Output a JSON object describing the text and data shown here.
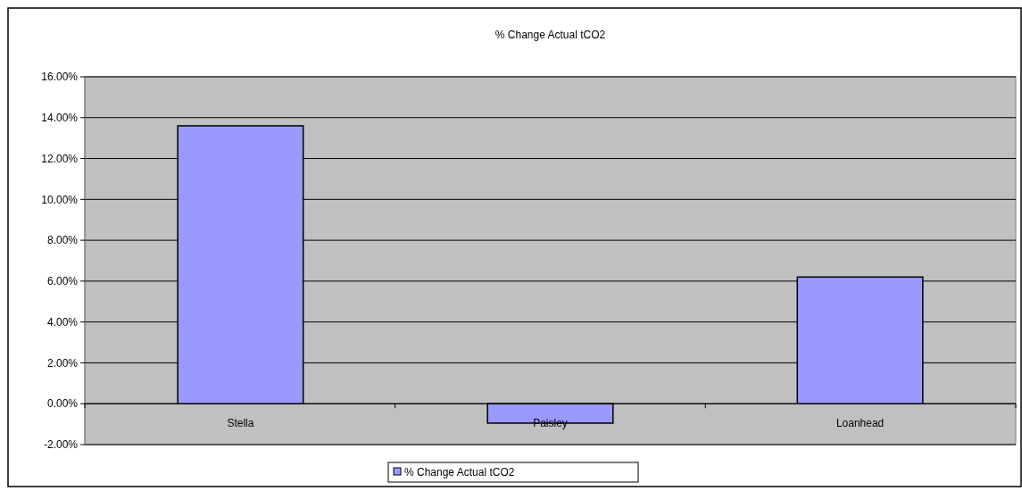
{
  "chart_data": {
    "type": "bar",
    "title": "% Change Actual tCO2",
    "categories": [
      "Stella",
      "Paisley",
      "Loanhead"
    ],
    "series": [
      {
        "name": "% Change Actual tCO2",
        "color": "#9999ff",
        "values": [
          13.6,
          -0.95,
          6.2
        ]
      }
    ],
    "ylim": [
      -2,
      16
    ],
    "yticks": [
      {
        "value": -2,
        "label": "-2.00%"
      },
      {
        "value": 0,
        "label": "0.00%"
      },
      {
        "value": 2,
        "label": "2.00%"
      },
      {
        "value": 4,
        "label": "4.00%"
      },
      {
        "value": 6,
        "label": "6.00%"
      },
      {
        "value": 8,
        "label": "8.00%"
      },
      {
        "value": 10,
        "label": "10.00%"
      },
      {
        "value": 12,
        "label": "12.00%"
      },
      {
        "value": 14,
        "label": "14.00%"
      },
      {
        "value": 16,
        "label": "16.00%"
      }
    ],
    "grid": "y",
    "legend": "bottom"
  }
}
